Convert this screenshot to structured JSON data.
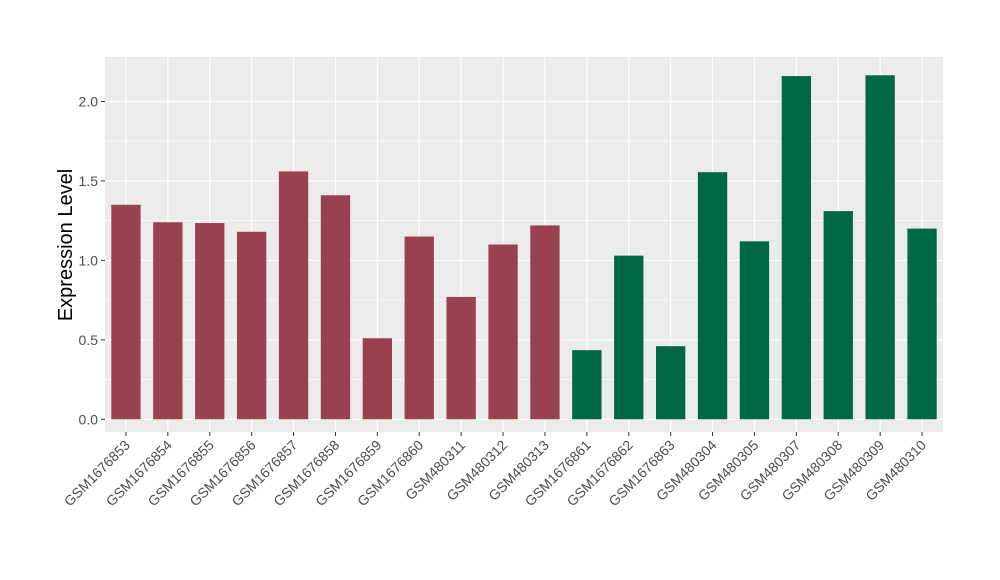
{
  "chart_data": {
    "type": "bar",
    "title": "",
    "xlabel": "",
    "ylabel": "Expression Level",
    "ylim": [
      -0.08,
      2.28
    ],
    "yticks": [
      0.0,
      0.5,
      1.0,
      1.5,
      2.0
    ],
    "ytick_labels": [
      "0.0",
      "0.5",
      "1.0",
      "1.5",
      "2.0"
    ],
    "grid": true,
    "legend": "none",
    "panel_background": "#ebebeb",
    "grid_color": "#ffffff",
    "categories": [
      "GSM1676853",
      "GSM1676854",
      "GSM1676855",
      "GSM1676856",
      "GSM1676857",
      "GSM1676858",
      "GSM1676859",
      "GSM1676860",
      "GSM480311",
      "GSM480312",
      "GSM480313",
      "GSM1676861",
      "GSM1676862",
      "GSM1676863",
      "GSM480304",
      "GSM480305",
      "GSM480307",
      "GSM480308",
      "GSM480309",
      "GSM480310"
    ],
    "values": [
      1.35,
      1.24,
      1.235,
      1.18,
      1.56,
      1.41,
      0.51,
      1.15,
      0.77,
      1.1,
      1.22,
      0.435,
      1.03,
      0.46,
      1.555,
      1.12,
      2.16,
      1.31,
      2.165,
      1.2
    ],
    "bar_colors": [
      "#9a4150",
      "#9a4150",
      "#9a4150",
      "#9a4150",
      "#9a4150",
      "#9a4150",
      "#9a4150",
      "#9a4150",
      "#9a4150",
      "#9a4150",
      "#9a4150",
      "#006845",
      "#006845",
      "#006845",
      "#006845",
      "#006845",
      "#006845",
      "#006845",
      "#006845",
      "#006845"
    ]
  }
}
